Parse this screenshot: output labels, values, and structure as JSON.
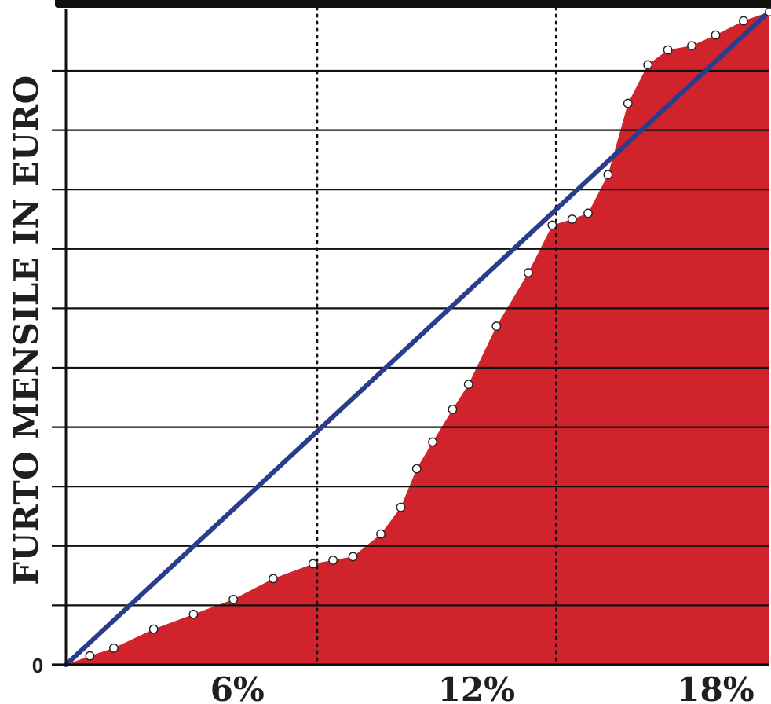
{
  "chart_data": {
    "type": "area",
    "title": "",
    "xlabel": "",
    "ylabel": "FURTO MENSILE IN EURO",
    "x_tick_labels": [
      "6%",
      "12%",
      "18%"
    ],
    "x_ticks": [
      6,
      12,
      18
    ],
    "y_tick_labels": [
      "0"
    ],
    "y_ticks": [
      0
    ],
    "xlim": [
      1.7,
      19.35
    ],
    "ylim": [
      0,
      11
    ],
    "grid": "horizontal",
    "reference_lines_x": [
      8.0,
      14.0
    ],
    "colors": {
      "area": "#d0232b",
      "trend": "#283e8c",
      "grid": "#111111",
      "axis": "#111111"
    },
    "area": {
      "x": [
        1.7,
        2.3,
        2.9,
        3.9,
        4.9,
        5.9,
        6.9,
        7.9,
        8.4,
        8.9,
        9.6,
        10.1,
        10.5,
        10.9,
        11.4,
        11.8,
        12.5,
        13.3,
        13.9,
        14.4,
        14.8,
        15.3,
        15.8,
        16.3,
        16.8,
        17.4,
        18.0,
        18.7,
        19.35
      ],
      "y": [
        0,
        0.15,
        0.28,
        0.6,
        0.85,
        1.1,
        1.45,
        1.7,
        1.76,
        1.82,
        2.2,
        2.65,
        3.3,
        3.75,
        4.3,
        4.72,
        5.7,
        6.6,
        7.4,
        7.5,
        7.6,
        8.25,
        9.45,
        10.1,
        10.35,
        10.42,
        10.6,
        10.84,
        10.99
      ]
    },
    "series": [
      {
        "type": "scatter",
        "x": [
          2.3,
          2.9,
          3.9,
          4.9,
          5.9,
          6.9,
          7.9,
          8.4,
          8.9,
          9.6,
          10.1,
          10.5,
          10.9,
          11.4,
          11.8,
          12.5,
          13.3,
          13.9,
          14.4,
          14.8,
          15.3,
          15.8,
          16.3,
          16.8,
          17.4,
          18.0,
          18.7,
          19.35
        ],
        "y": [
          0.15,
          0.28,
          0.6,
          0.85,
          1.1,
          1.45,
          1.7,
          1.76,
          1.82,
          2.2,
          2.65,
          3.3,
          3.75,
          4.3,
          4.72,
          5.7,
          6.6,
          7.4,
          7.5,
          7.6,
          8.25,
          9.45,
          10.1,
          10.35,
          10.42,
          10.6,
          10.84,
          10.99
        ]
      },
      {
        "type": "line",
        "x": [
          1.7,
          19.35
        ],
        "y": [
          0,
          11
        ]
      }
    ]
  }
}
